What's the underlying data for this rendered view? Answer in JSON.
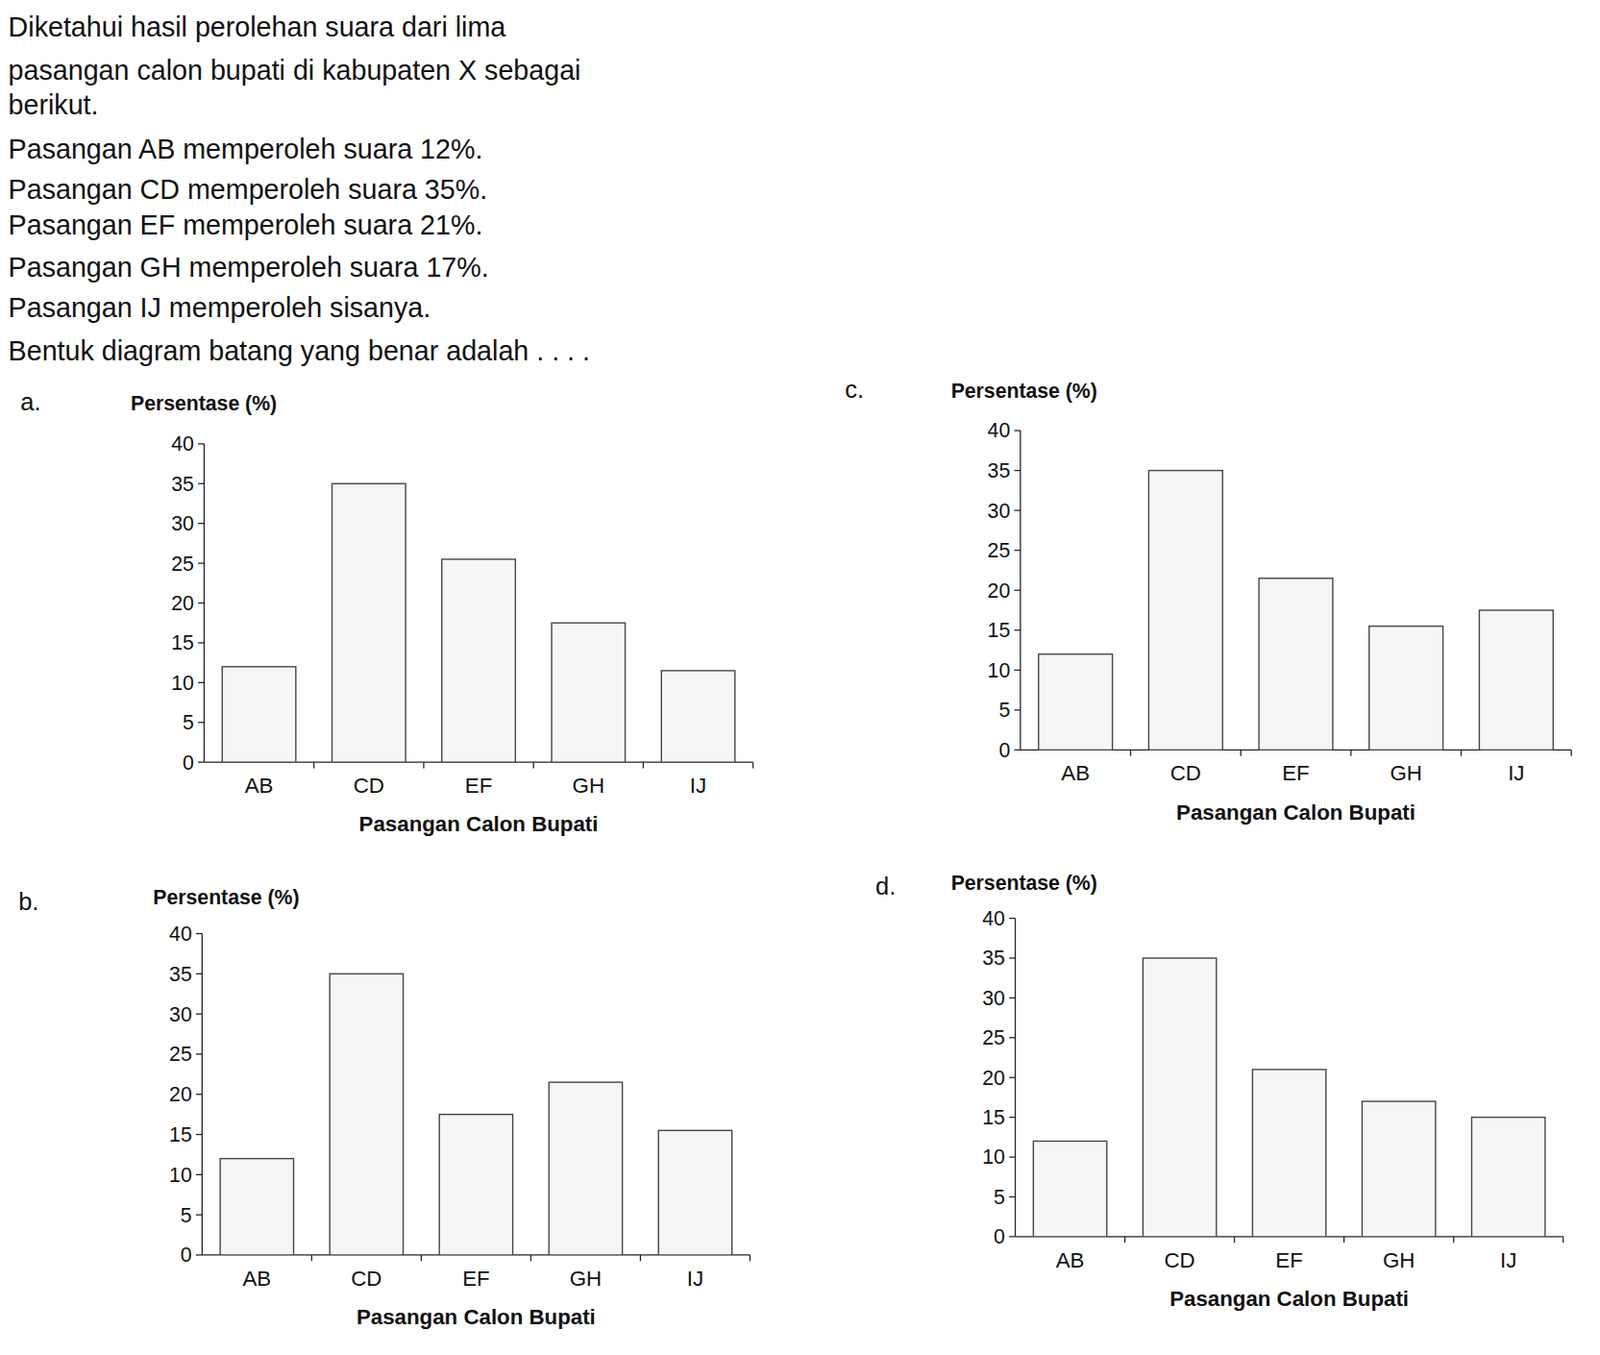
{
  "question": {
    "lines": [
      "Diketahui hasil perolehan suara dari lima",
      "pasangan calon bupati di kabupaten X sebagai",
      "berikut.",
      "Pasangan AB memperoleh suara 12%.",
      "Pasangan CD memperoleh suara 35%.",
      "Pasangan EF memperoleh suara 21%.",
      "Pasangan GH memperoleh suara 17%.",
      "Pasangan IJ memperoleh sisanya.",
      "Bentuk diagram batang yang benar adalah . . . ."
    ]
  },
  "option_labels": [
    "a.",
    "b.",
    "c.",
    "d."
  ],
  "chart_data": [
    {
      "type": "bar",
      "ylabel": "Persentase (%)",
      "xlabel": "Pasangan Calon Bupati",
      "categories": [
        "AB",
        "CD",
        "EF",
        "GH",
        "IJ"
      ],
      "values": [
        12,
        35,
        25.5,
        17.5,
        11.5
      ],
      "ylim": [
        0,
        40
      ],
      "yticks": [
        0,
        5,
        10,
        15,
        20,
        25,
        30,
        35,
        40
      ]
    },
    {
      "type": "bar",
      "ylabel": "Persentase (%)",
      "xlabel": "Pasangan Calon Bupati",
      "categories": [
        "AB",
        "CD",
        "EF",
        "GH",
        "IJ"
      ],
      "values": [
        12,
        35,
        17.5,
        21.5,
        15.5
      ],
      "ylim": [
        0,
        40
      ],
      "yticks": [
        0,
        5,
        10,
        15,
        20,
        25,
        30,
        35,
        40
      ]
    },
    {
      "type": "bar",
      "ylabel": "Persentase (%)",
      "xlabel": "Pasangan Calon Bupati",
      "categories": [
        "AB",
        "CD",
        "EF",
        "GH",
        "IJ"
      ],
      "values": [
        12,
        35,
        21.5,
        15.5,
        17.5
      ],
      "ylim": [
        0,
        40
      ],
      "yticks": [
        0,
        5,
        10,
        15,
        20,
        25,
        30,
        35,
        40
      ]
    },
    {
      "type": "bar",
      "ylabel": "Persentase (%)",
      "xlabel": "Pasangan Calon Bupati",
      "categories": [
        "AB",
        "CD",
        "EF",
        "GH",
        "IJ"
      ],
      "values": [
        12,
        35,
        21,
        17,
        15
      ],
      "ylim": [
        0,
        40
      ],
      "yticks": [
        0,
        5,
        10,
        15,
        20,
        25,
        30,
        35,
        40
      ]
    }
  ]
}
